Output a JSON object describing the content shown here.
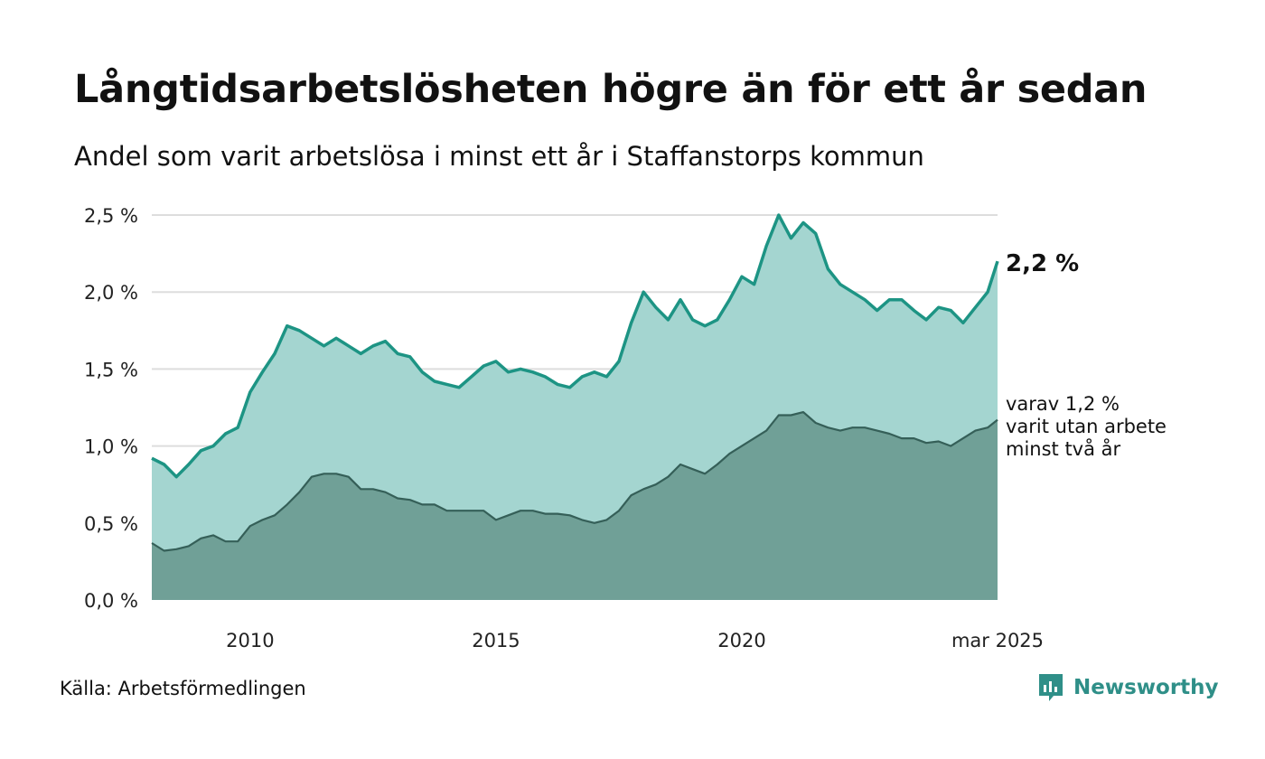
{
  "title": "Långtidsarbetslösheten högre än för ett år sedan",
  "subtitle": "Andel som varit arbetslösa i minst ett år i Staffanstorps kommun",
  "source": "Källa: Arbetsförmedlingen",
  "brand": "Newsworthy",
  "colors": {
    "upper_fill": "#a4d5d0",
    "upper_line": "#1d9484",
    "lower_fill": "#70a097",
    "lower_line": "#355f58",
    "grid": "#dddddd"
  },
  "chart_data": {
    "type": "area",
    "ylim": [
      0,
      2.5
    ],
    "y_ticks": [
      {
        "value": 0.0,
        "label": "0,0 %"
      },
      {
        "value": 0.5,
        "label": "0,5 %"
      },
      {
        "value": 1.0,
        "label": "1,0 %"
      },
      {
        "value": 1.5,
        "label": "1,5 %"
      },
      {
        "value": 2.0,
        "label": "2,0 %"
      },
      {
        "value": 2.5,
        "label": "2,5 %"
      }
    ],
    "x_range": [
      2008.0,
      2025.2
    ],
    "x_ticks": [
      {
        "value": 2010,
        "label": "2010"
      },
      {
        "value": 2015,
        "label": "2015"
      },
      {
        "value": 2020,
        "label": "2020"
      },
      {
        "value": 2025.2,
        "label": "mar 2025"
      }
    ],
    "grid": true,
    "end_labels": {
      "upper": "2,2 %",
      "lower": [
        "varav 1,2 %",
        "varit utan arbete",
        "minst två år"
      ]
    },
    "series": [
      {
        "key": "upper",
        "x": [
          2008.0,
          2008.25,
          2008.5,
          2008.75,
          2009.0,
          2009.25,
          2009.5,
          2009.75,
          2010.0,
          2010.25,
          2010.5,
          2010.75,
          2011.0,
          2011.25,
          2011.5,
          2011.75,
          2012.0,
          2012.25,
          2012.5,
          2012.75,
          2013.0,
          2013.25,
          2013.5,
          2013.75,
          2014.0,
          2014.25,
          2014.5,
          2014.75,
          2015.0,
          2015.25,
          2015.5,
          2015.75,
          2016.0,
          2016.25,
          2016.5,
          2016.75,
          2017.0,
          2017.25,
          2017.5,
          2017.75,
          2018.0,
          2018.25,
          2018.5,
          2018.75,
          2019.0,
          2019.25,
          2019.5,
          2019.75,
          2020.0,
          2020.25,
          2020.5,
          2020.75,
          2021.0,
          2021.25,
          2021.5,
          2021.75,
          2022.0,
          2022.25,
          2022.5,
          2022.75,
          2023.0,
          2023.25,
          2023.5,
          2023.75,
          2024.0,
          2024.25,
          2024.5,
          2024.75,
          2025.0,
          2025.2
        ],
        "values": [
          0.92,
          0.88,
          0.8,
          0.88,
          0.97,
          1.0,
          1.08,
          1.12,
          1.35,
          1.48,
          1.6,
          1.78,
          1.75,
          1.7,
          1.65,
          1.7,
          1.65,
          1.6,
          1.65,
          1.68,
          1.6,
          1.58,
          1.48,
          1.42,
          1.4,
          1.38,
          1.45,
          1.52,
          1.55,
          1.48,
          1.5,
          1.48,
          1.45,
          1.4,
          1.38,
          1.45,
          1.48,
          1.45,
          1.55,
          1.8,
          2.0,
          1.9,
          1.82,
          1.95,
          1.82,
          1.78,
          1.82,
          1.95,
          2.1,
          2.05,
          2.3,
          2.5,
          2.35,
          2.45,
          2.38,
          2.15,
          2.05,
          2.0,
          1.95,
          1.88,
          1.95,
          1.95,
          1.88,
          1.82,
          1.9,
          1.88,
          1.8,
          1.9,
          2.0,
          2.2
        ]
      },
      {
        "key": "lower",
        "x": [
          2008.0,
          2008.25,
          2008.5,
          2008.75,
          2009.0,
          2009.25,
          2009.5,
          2009.75,
          2010.0,
          2010.25,
          2010.5,
          2010.75,
          2011.0,
          2011.25,
          2011.5,
          2011.75,
          2012.0,
          2012.25,
          2012.5,
          2012.75,
          2013.0,
          2013.25,
          2013.5,
          2013.75,
          2014.0,
          2014.25,
          2014.5,
          2014.75,
          2015.0,
          2015.25,
          2015.5,
          2015.75,
          2016.0,
          2016.25,
          2016.5,
          2016.75,
          2017.0,
          2017.25,
          2017.5,
          2017.75,
          2018.0,
          2018.25,
          2018.5,
          2018.75,
          2019.0,
          2019.25,
          2019.5,
          2019.75,
          2020.0,
          2020.25,
          2020.5,
          2020.75,
          2021.0,
          2021.25,
          2021.5,
          2021.75,
          2022.0,
          2022.25,
          2022.5,
          2022.75,
          2023.0,
          2023.25,
          2023.5,
          2023.75,
          2024.0,
          2024.25,
          2024.5,
          2024.75,
          2025.0,
          2025.2
        ],
        "values": [
          0.37,
          0.32,
          0.33,
          0.35,
          0.4,
          0.42,
          0.38,
          0.38,
          0.48,
          0.52,
          0.55,
          0.62,
          0.7,
          0.8,
          0.82,
          0.82,
          0.8,
          0.72,
          0.72,
          0.7,
          0.66,
          0.65,
          0.62,
          0.62,
          0.58,
          0.58,
          0.58,
          0.58,
          0.52,
          0.55,
          0.58,
          0.58,
          0.56,
          0.56,
          0.55,
          0.52,
          0.5,
          0.52,
          0.58,
          0.68,
          0.72,
          0.75,
          0.8,
          0.88,
          0.85,
          0.82,
          0.88,
          0.95,
          1.0,
          1.05,
          1.1,
          1.2,
          1.2,
          1.22,
          1.15,
          1.12,
          1.1,
          1.12,
          1.12,
          1.1,
          1.08,
          1.05,
          1.05,
          1.02,
          1.03,
          1.0,
          1.05,
          1.1,
          1.12,
          1.17
        ]
      }
    ]
  }
}
